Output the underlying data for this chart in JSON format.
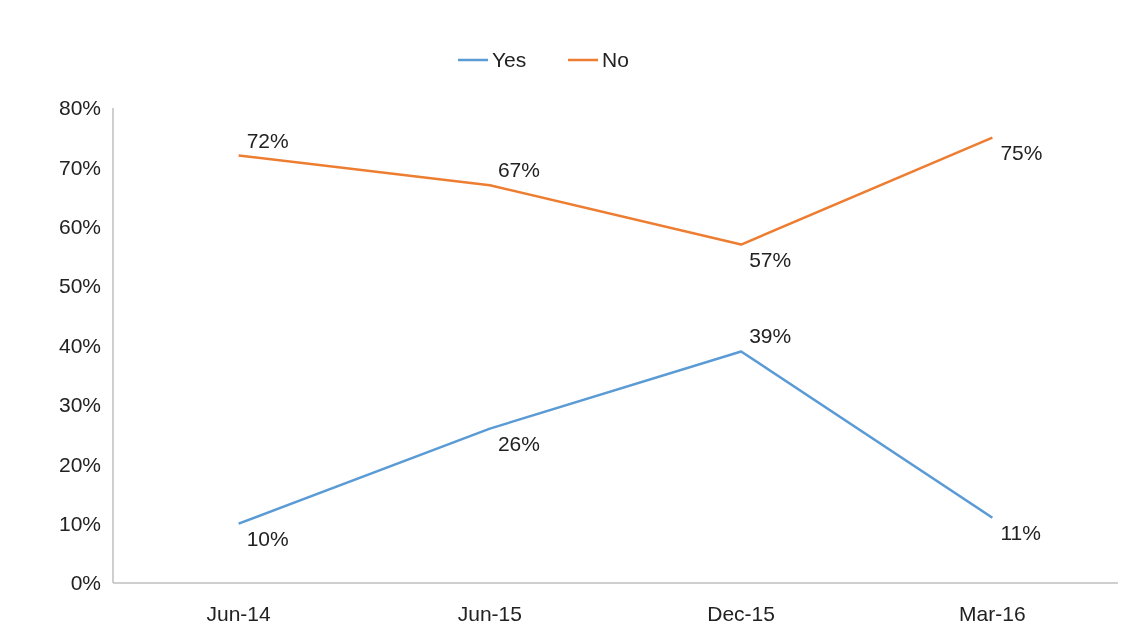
{
  "chart_data": {
    "type": "line",
    "categories": [
      "Jun-14",
      "Jun-15",
      "Dec-15",
      "Mar-16"
    ],
    "series": [
      {
        "name": "Yes",
        "color": "#5b9bd5",
        "values": [
          10,
          26,
          39,
          11
        ],
        "value_labels": [
          "10%",
          "26%",
          "39%",
          "11%"
        ]
      },
      {
        "name": "No",
        "color": "#ed7d31",
        "values": [
          72,
          67,
          57,
          75
        ],
        "value_labels": [
          "72%",
          "67%",
          "57%",
          "75%"
        ]
      }
    ],
    "ylim": [
      0,
      80
    ],
    "yticks": [
      {
        "value": 0,
        "label": "0%"
      },
      {
        "value": 10,
        "label": "10%"
      },
      {
        "value": 20,
        "label": "20%"
      },
      {
        "value": 30,
        "label": "30%"
      },
      {
        "value": 40,
        "label": "40%"
      },
      {
        "value": 50,
        "label": "50%"
      },
      {
        "value": 60,
        "label": "60%"
      },
      {
        "value": 70,
        "label": "70%"
      },
      {
        "value": 80,
        "label": "80%"
      }
    ],
    "grid": false,
    "legend": "top",
    "marker": "none",
    "line_style": "solid"
  }
}
